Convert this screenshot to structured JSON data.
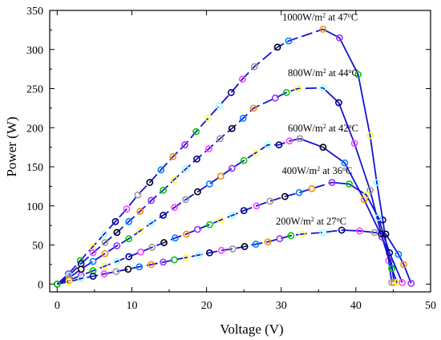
{
  "chart_data": {
    "type": "line",
    "title": "",
    "xlabel": "Voltage (V)",
    "ylabel": "Power (W)",
    "xlim": [
      -1,
      50
    ],
    "ylim": [
      -10,
      350
    ],
    "xticks": [
      0,
      10,
      20,
      30,
      40,
      50
    ],
    "yticks": [
      0,
      50,
      100,
      150,
      200,
      250,
      300,
      350
    ],
    "grid": false,
    "line_color": "#1414d2",
    "marker_palette": [
      "#ff8c00",
      "#9933ff",
      "#00cc00",
      "#ffff44",
      "#99ffff",
      "#000080",
      "#ff44ff",
      "#999999",
      "#000000",
      "#0080ff"
    ],
    "series": [
      {
        "label_main": "1000W/m",
        "label_sup1": "2",
        "label_mid": " at 47",
        "label_sup2": "o",
        "label_end": "C",
        "label_at": [
          35.2,
          337
        ],
        "x": [
          0,
          1.5,
          3.1,
          4.7,
          6.3,
          7.8,
          9.3,
          10.8,
          12.4,
          13.9,
          15.5,
          17.1,
          18.6,
          20.2,
          21.7,
          23.3,
          24.8,
          26.4,
          29.5,
          31,
          35.6,
          37.8,
          40.3,
          41.9,
          42.8,
          43.6,
          44.4,
          44.8
        ],
        "y": [
          0,
          13,
          30,
          47,
          64,
          80,
          96,
          114,
          130,
          146,
          163,
          178,
          195,
          212,
          228,
          245,
          262,
          278,
          303,
          311,
          326,
          315,
          268,
          190,
          130,
          82,
          30,
          2
        ]
      },
      {
        "label_main": "800W/m",
        "label_sup1": "2",
        "label_mid": " at 44",
        "label_sup2": "o",
        "label_end": "C",
        "label_at": [
          35.6,
          266
        ],
        "x": [
          0,
          1.6,
          3.2,
          4.8,
          6.4,
          8,
          9.6,
          11.1,
          12.6,
          14.2,
          15.7,
          17.2,
          18.7,
          20.3,
          21.8,
          23.4,
          24.9,
          26.3,
          29.2,
          30.7,
          32.2,
          35.6,
          37.7,
          39.8,
          41.9,
          43.4,
          44.8,
          45.1
        ],
        "y": [
          0,
          11,
          26,
          40,
          53,
          66,
          80,
          93,
          107,
          120,
          134,
          147,
          160,
          173,
          186,
          199,
          212,
          225,
          238,
          245,
          250,
          251,
          232,
          180,
          120,
          64,
          25,
          2
        ]
      },
      {
        "label_main": "600W/m",
        "label_sup1": "2",
        "label_mid": " at 42",
        "label_sup2": "o",
        "label_end": "C",
        "label_at": [
          35.6,
          195
        ],
        "x": [
          0,
          1.6,
          3.2,
          4.8,
          6.4,
          8,
          9.6,
          11.1,
          12.6,
          14.2,
          15.7,
          17.2,
          18.8,
          20.4,
          21.9,
          23.4,
          25,
          26.6,
          28.2,
          29.7,
          31.1,
          32.5,
          35.6,
          38.5,
          41.1,
          43.5,
          44.8,
          45.5
        ],
        "y": [
          0,
          8,
          19,
          29,
          39,
          49,
          58,
          68,
          78,
          88,
          98,
          108,
          118,
          128,
          138,
          148,
          158,
          168,
          178,
          178,
          183,
          186,
          175,
          155,
          108,
          60,
          20,
          2
        ]
      },
      {
        "label_main": "400W/m",
        "label_sup1": "2",
        "label_mid": " at 36",
        "label_sup2": "o",
        "label_end": "C",
        "label_at": [
          34.8,
          141
        ],
        "x": [
          0,
          1.6,
          3.2,
          4.8,
          6.4,
          8,
          9.6,
          11.2,
          12.7,
          14.3,
          15.8,
          17.3,
          18.8,
          20.4,
          21.9,
          23.5,
          25,
          26.7,
          28.5,
          30.5,
          32.4,
          34.1,
          36.8,
          39.1,
          41.4,
          43,
          44.5,
          46.2
        ],
        "y": [
          0,
          5,
          11,
          17,
          23,
          29,
          35,
          41,
          47,
          53,
          59,
          64,
          70,
          76,
          82,
          88,
          94,
          100,
          106,
          112,
          117,
          122,
          130,
          128,
          114,
          85,
          40,
          2
        ]
      },
      {
        "label_main": "200W/m",
        "label_sup1": "2",
        "label_mid": " at 27",
        "label_sup2": "o",
        "label_end": "C",
        "label_at": [
          34.0,
          76
        ],
        "x": [
          0,
          1.6,
          3.2,
          4.8,
          6.3,
          7.9,
          9.5,
          11,
          12.6,
          14.2,
          15.7,
          17.3,
          18.9,
          20.4,
          22,
          23.5,
          25.1,
          26.6,
          28.2,
          29.8,
          31.3,
          32.8,
          35.6,
          38.1,
          40.5,
          42.5,
          44,
          45.7,
          46.4,
          47.4
        ],
        "y": [
          0,
          3,
          7,
          10,
          13,
          16,
          19,
          22,
          25,
          28,
          31,
          34,
          37,
          40,
          43,
          45,
          48,
          51,
          54,
          58,
          62,
          64,
          66,
          69,
          68,
          66,
          64,
          38,
          25,
          1
        ]
      }
    ]
  }
}
